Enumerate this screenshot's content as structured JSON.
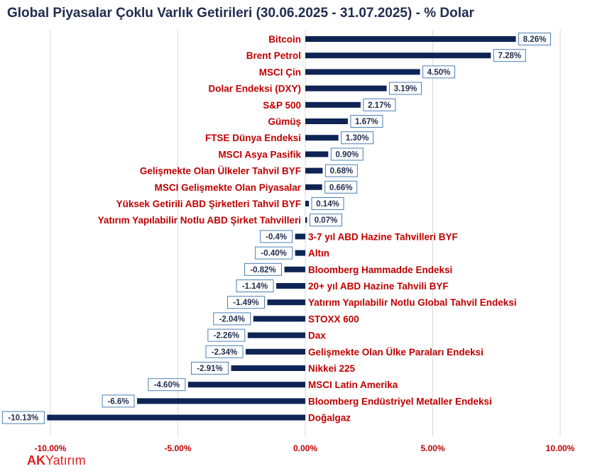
{
  "chart_data": {
    "type": "bar",
    "orientation": "horizontal",
    "title": "Global Piyasalar Çoklu Varlık Getirileri (30.06.2025 - 31.07.2025) - % Dolar",
    "categories": [
      "Bitcoin",
      "Brent Petrol",
      "MSCI Çin",
      "Dolar Endeksi (DXY)",
      "S&P 500",
      "Gümüş",
      "FTSE Dünya Endeksi",
      "MSCI Asya Pasifik",
      "Gelişmekte Olan Ülkeler Tahvil BYF",
      "MSCI Gelişmekte Olan Piyasalar",
      "Yüksek Getirili ABD Şirketleri Tahvil BYF",
      "Yatırım Yapılabilir Notlu  ABD Şirket Tahvilleri",
      "3-7 yıl ABD Hazine Tahvilleri BYF",
      "Altın",
      "Bloomberg Hammadde Endeksi",
      "20+ yıl ABD Hazine Tahvili BYF",
      "Yatırım Yapılabilir Notlu Global Tahvil Endeksi",
      "STOXX 600",
      "Dax",
      "Gelişmekte Olan Ülke Paraları Endeksi",
      "Nikkei 225",
      "MSCI Latin Amerika",
      "Bloomberg Endüstriyel Metaller Endeksi",
      "Doğalgaz"
    ],
    "values": [
      8.26,
      7.28,
      4.5,
      3.19,
      2.17,
      1.67,
      1.3,
      0.9,
      0.68,
      0.66,
      0.14,
      0.07,
      -0.4,
      -0.4,
      -0.82,
      -1.14,
      -1.49,
      -2.04,
      -2.26,
      -2.34,
      -2.91,
      -4.6,
      -6.6,
      -10.13
    ],
    "value_labels": [
      "8.26%",
      "7.28%",
      "4.50%",
      "3.19%",
      "2.17%",
      "1.67%",
      "1.30%",
      "0.90%",
      "0.68%",
      "0.66%",
      "0.14%",
      "0.07%",
      "-0.4%",
      "-0.40%",
      "-0.82%",
      "-1.14%",
      "-1.49%",
      "-2.04%",
      "-2.26%",
      "-2.34%",
      "-2.91%",
      "-4.60%",
      "-6.6%",
      "-10.13%"
    ],
    "xlim": [
      -10,
      10
    ],
    "xticks": [
      -10,
      -5,
      0,
      5,
      10
    ],
    "xtick_labels": [
      "-10.00%",
      "-5.00%",
      "0.00%",
      "5.00%",
      "10.00%"
    ],
    "grid": "vertical",
    "colors": {
      "bar": "#0e2454",
      "label": "#c00000",
      "title": "#1f2d4e",
      "value_box_border": "#4a7fb5"
    }
  },
  "logo": {
    "ak": "AK",
    "rest": "Yatırım"
  }
}
